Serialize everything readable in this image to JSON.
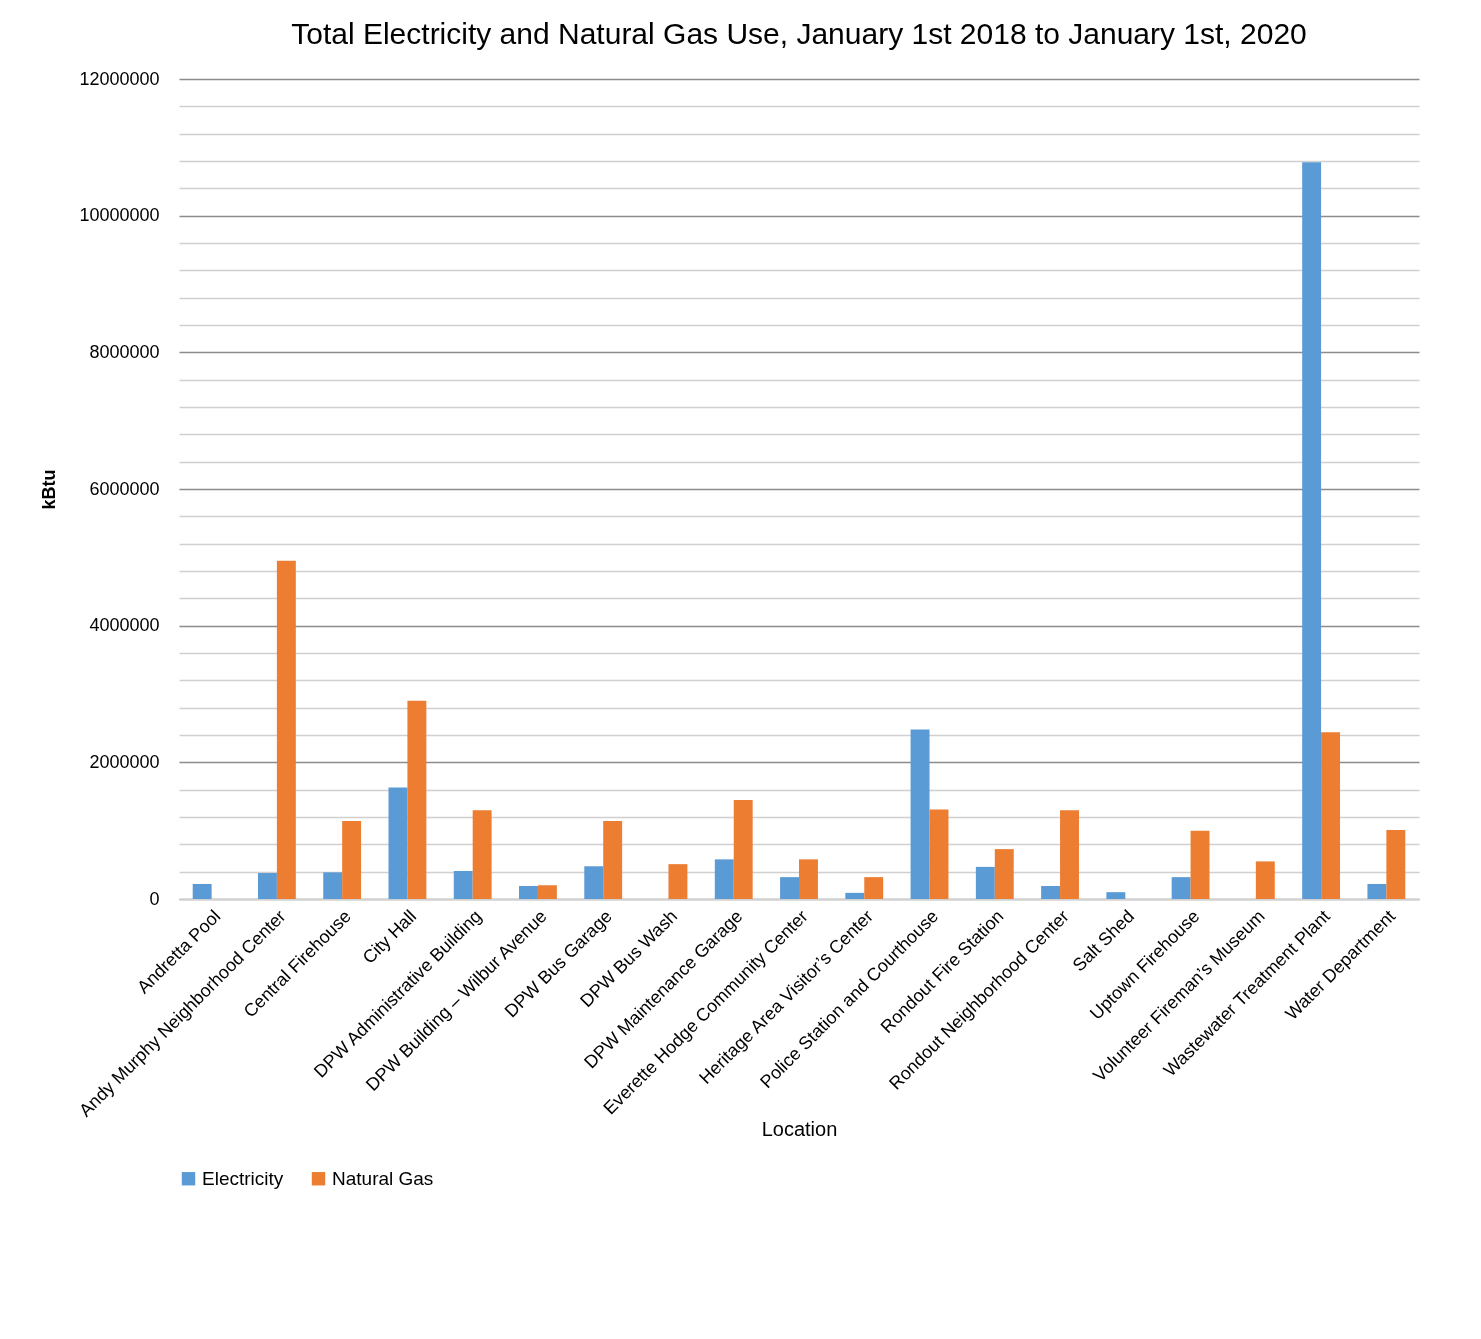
{
  "chart_data": {
    "type": "bar",
    "title": "Total Electricity and Natural Gas Use, January 1st 2018 to January 1st, 2020",
    "xlabel": "Location",
    "ylabel": "kBtu",
    "categories": [
      "Andretta Pool",
      "Andy Murphy Neighborhood Center",
      "Central Firehouse",
      "City Hall",
      "DPW Administrative Building",
      "DPW Building – Wilbur Avenue",
      "DPW Bus Garage",
      "DPW Bus Wash",
      "DPW Maintenance Garage",
      "Everette Hodge Community Center",
      "Heritage Area Visitor’s Center",
      "Police Station and Courthouse",
      "Rondout Fire Station",
      "Rondout Neighborhood Center",
      "Salt Shed",
      "Uptown Firehouse",
      "Volunteer Fireman’s Museum",
      "Wastewater Treatment Plant",
      "Water Department"
    ],
    "series": [
      {
        "name": "Electricity",
        "color": "#5b9bd5",
        "values": [
          220000,
          380000,
          390000,
          1630000,
          410000,
          190000,
          480000,
          null,
          580000,
          320000,
          90000,
          2480000,
          470000,
          190000,
          100000,
          320000,
          null,
          10780000,
          220000
        ]
      },
      {
        "name": "Natural Gas",
        "color": "#ed7d31",
        "values": [
          null,
          4950000,
          1140000,
          2900000,
          1300000,
          200000,
          1140000,
          510000,
          1450000,
          580000,
          320000,
          1310000,
          730000,
          1300000,
          null,
          1000000,
          550000,
          2440000,
          1010000
        ]
      }
    ],
    "ylim": [
      0,
      12000000
    ],
    "yticks": [
      0,
      {
        "value": 400000,
        "label": null
      },
      {
        "value": 800000,
        "label": null
      },
      {
        "value": 1200000,
        "label": null
      },
      {
        "value": 1600000,
        "label": null
      },
      2000000,
      {
        "value": 2400000,
        "label": null
      },
      {
        "value": 2800000,
        "label": null
      },
      {
        "value": 3200000,
        "label": null
      },
      {
        "value": 3600000,
        "label": null
      },
      4000000,
      {
        "value": 4400000,
        "label": null
      },
      {
        "value": 4800000,
        "label": null
      },
      {
        "value": 5200000,
        "label": null
      },
      {
        "value": 5600000,
        "label": null
      },
      6000000,
      {
        "value": 6400000,
        "label": null
      },
      {
        "value": 6800000,
        "label": null
      },
      {
        "value": 7200000,
        "label": null
      },
      {
        "value": 7600000,
        "label": null
      },
      8000000,
      {
        "value": 8400000,
        "label": null
      },
      {
        "value": 8800000,
        "label": null
      },
      {
        "value": 9200000,
        "label": null
      },
      {
        "value": 9600000,
        "label": null
      },
      10000000,
      {
        "value": 10400000,
        "label": null
      },
      {
        "value": 10800000,
        "label": null
      },
      {
        "value": 11200000,
        "label": null
      },
      {
        "value": 11600000,
        "label": null
      },
      12000000
    ],
    "grid": "y",
    "legend": "bottom"
  }
}
